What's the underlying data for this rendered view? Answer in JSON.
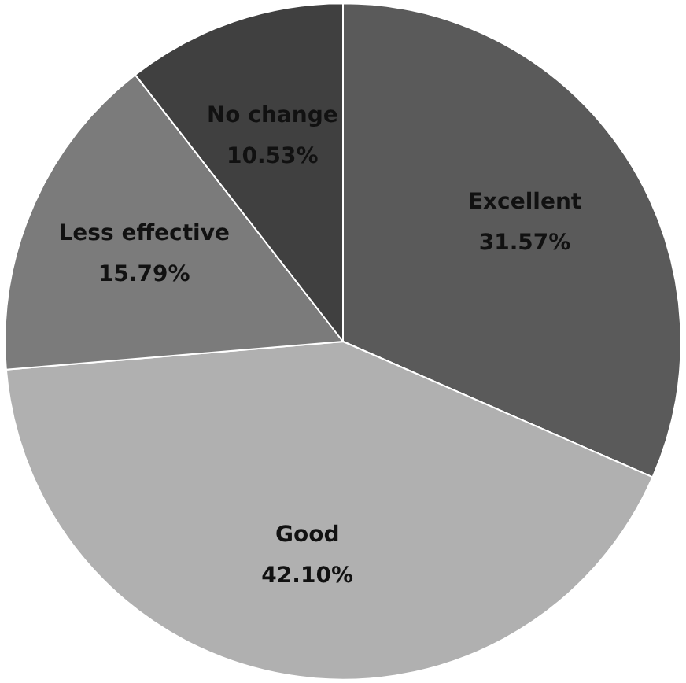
{
  "chart_data": {
    "type": "pie",
    "categories": [
      "Excellent",
      "Good",
      "Less effective",
      "No change"
    ],
    "values": [
      31.57,
      42.1,
      15.79,
      10.53
    ],
    "value_labels": [
      "31.57%",
      "42.10%",
      "15.79%",
      "10.53%"
    ],
    "colors": [
      "#5a5a5a",
      "#b0b0b0",
      "#7b7b7b",
      "#404040"
    ],
    "legend": false
  }
}
